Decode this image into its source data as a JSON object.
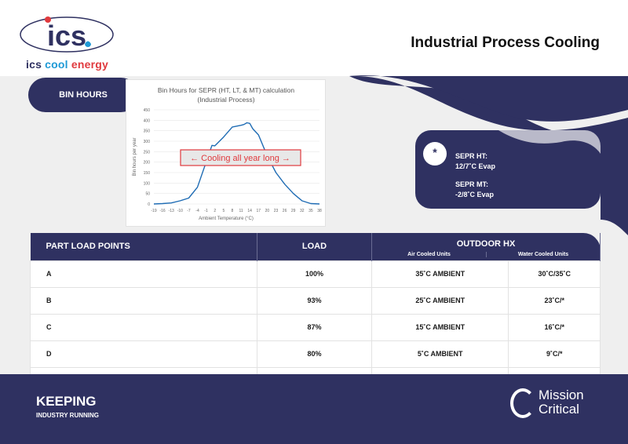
{
  "header": {
    "title": "Industrial Process Cooling",
    "logo_letters": "ics",
    "brand": {
      "w1": "ics",
      "w2": "cool",
      "w3": "energy"
    }
  },
  "section_pill": "BIN HOURS",
  "chart_data": {
    "type": "line",
    "title": "Bin Hours for SEPR (HT, LT, & MT) calculation",
    "subtitle": "(Industrial Process)",
    "xlabel": "Ambient Temperature (°C)",
    "ylabel": "Bin hours per year",
    "ylim": [
      0,
      450
    ],
    "yticks": [
      0,
      50,
      100,
      150,
      200,
      250,
      300,
      350,
      400,
      450
    ],
    "xticks": [
      -19,
      -16,
      -13,
      -10,
      -7,
      -4,
      -1,
      2,
      5,
      8,
      11,
      14,
      17,
      20,
      23,
      26,
      29,
      32,
      35,
      38
    ],
    "x": [
      -19,
      -16,
      -13,
      -10,
      -7,
      -4,
      -1,
      1,
      2,
      5,
      8,
      11,
      12,
      13,
      14,
      15,
      17,
      20,
      23,
      26,
      29,
      32,
      35,
      38
    ],
    "values": [
      0,
      2,
      5,
      15,
      28,
      80,
      200,
      280,
      278,
      320,
      368,
      376,
      380,
      388,
      385,
      360,
      330,
      230,
      150,
      95,
      50,
      15,
      2,
      0
    ],
    "annotation": "← Cooling all year long →",
    "color": "#1f6cb4"
  },
  "info": {
    "icon": "snowflake-icon",
    "glyph": "*",
    "ht_label": "SEPR HT:",
    "ht_value": "12/7˚C Evap",
    "mt_label": "SEPR MT:",
    "mt_value": "-2/8˚C Evap"
  },
  "table": {
    "h_points": "PART LOAD POINTS",
    "h_load": "LOAD",
    "h_outdoor": "OUTDOOR HX",
    "h_air": "Air Cooled Units",
    "h_water": "Water Cooled Units",
    "rows": [
      [
        "A",
        "100%",
        "35˚C AMBIENT",
        "30˚C/35˚C"
      ],
      [
        "B",
        "93%",
        "25˚C AMBIENT",
        "23˚C/*"
      ],
      [
        "C",
        "87%",
        "15˚C AMBIENT",
        "16˚C/*"
      ],
      [
        "D",
        "80%",
        "5˚C AMBIENT",
        "9˚C/*"
      ]
    ]
  },
  "footer": {
    "keeping": "KEEPIN",
    "g": "G",
    "running": "INDUSTRY RUNNING",
    "mission": "Mission",
    "critical": "Critical"
  },
  "colors": {
    "navy": "#2f3161",
    "red": "#e03a3e",
    "blue": "#1f9ad6"
  }
}
